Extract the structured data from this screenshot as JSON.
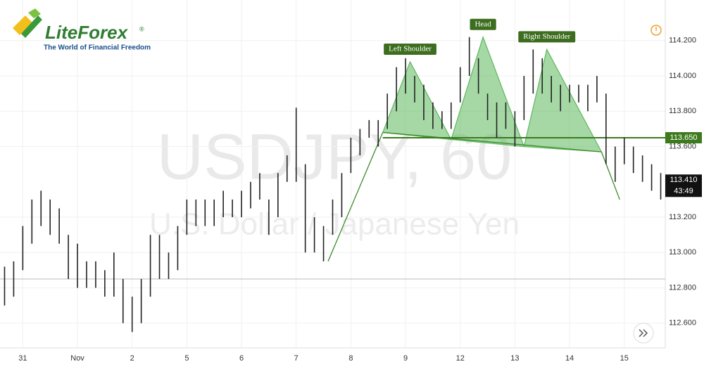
{
  "brand": {
    "name": "LiteForex",
    "mark": "®",
    "tagline": "The World of Financial Freedom"
  },
  "chart_data": {
    "type": "ohlc",
    "title": "USDJPY, 60",
    "subtitle": "U.S. Dollar / Japanese Yen",
    "categories": [
      null,
      null,
      "31",
      null,
      null,
      null,
      null,
      null,
      "Nov",
      null,
      null,
      null,
      null,
      null,
      "2",
      null,
      null,
      null,
      null,
      null,
      "5",
      null,
      null,
      null,
      null,
      null,
      "6",
      null,
      null,
      null,
      null,
      null,
      "7",
      null,
      null,
      null,
      null,
      null,
      "8",
      null,
      null,
      null,
      null,
      null,
      "9",
      null,
      null,
      null,
      null,
      null,
      "12",
      null,
      null,
      null,
      null,
      null,
      "13",
      null,
      null,
      null,
      null,
      null,
      "14",
      null,
      null,
      null,
      null,
      null,
      "15",
      null,
      null,
      null,
      null
    ],
    "high": [
      112.92,
      112.95,
      113.15,
      113.3,
      113.35,
      113.3,
      113.25,
      113.1,
      113.05,
      112.95,
      112.95,
      112.9,
      113.0,
      112.85,
      112.75,
      112.85,
      113.1,
      113.1,
      113.0,
      113.15,
      113.3,
      113.3,
      113.3,
      113.3,
      113.35,
      113.3,
      113.35,
      113.4,
      113.45,
      113.3,
      113.45,
      113.55,
      113.82,
      113.5,
      113.2,
      113.15,
      113.3,
      113.45,
      113.65,
      113.7,
      113.75,
      113.75,
      113.9,
      114.05,
      114.1,
      114.0,
      113.95,
      113.85,
      113.8,
      113.85,
      114.05,
      114.22,
      114.1,
      113.9,
      113.85,
      113.85,
      113.8,
      114.0,
      114.15,
      114.1,
      114.0,
      113.95,
      113.95,
      113.95,
      113.95,
      114.0,
      113.9,
      113.6,
      113.65,
      113.6,
      113.55,
      113.5,
      113.45
    ],
    "low": [
      112.7,
      112.75,
      112.9,
      113.05,
      113.15,
      113.1,
      113.05,
      112.85,
      112.8,
      112.8,
      112.8,
      112.75,
      112.75,
      112.6,
      112.55,
      112.6,
      112.75,
      112.85,
      112.85,
      112.9,
      113.1,
      113.15,
      113.15,
      113.15,
      113.2,
      113.2,
      113.2,
      113.25,
      113.3,
      113.1,
      113.2,
      113.4,
      113.4,
      113.0,
      113.0,
      112.95,
      113.1,
      113.2,
      113.45,
      113.55,
      113.65,
      113.6,
      113.7,
      113.8,
      113.9,
      113.85,
      113.75,
      113.7,
      113.7,
      113.7,
      113.85,
      114.0,
      113.9,
      113.75,
      113.65,
      113.7,
      113.6,
      113.75,
      113.9,
      113.9,
      113.85,
      113.8,
      113.85,
      113.85,
      113.8,
      113.85,
      113.5,
      113.4,
      113.5,
      113.45,
      113.4,
      113.35,
      113.3
    ],
    "color": "#222222",
    "ylim": [
      112.46,
      114.43
    ],
    "yticks": [
      {
        "value": 112.6,
        "label": "112.600"
      },
      {
        "value": 112.8,
        "label": "112.800"
      },
      {
        "value": 113.0,
        "label": "113.000"
      },
      {
        "value": 113.2,
        "label": "113.200"
      },
      {
        "value": 113.6,
        "label": "113.600"
      },
      {
        "value": 113.8,
        "label": "113.800"
      },
      {
        "value": 114.0,
        "label": "114.000"
      },
      {
        "value": 114.2,
        "label": "114.200"
      }
    ],
    "grid": true,
    "reference_line": 112.85,
    "neckline": {
      "value": 113.65,
      "label": "113.650",
      "color": "#3d7a1e"
    },
    "last_price": {
      "value": 113.41,
      "label": "113.410",
      "countdown": "43:49"
    },
    "pattern_color": "#5cb85c",
    "pattern": [
      {
        "label": "Left Shoulder",
        "points": [
          [
            41.5,
            113.68
          ],
          [
            44.5,
            114.08
          ],
          [
            49,
            113.64
          ]
        ]
      },
      {
        "label": "Head",
        "points": [
          [
            49,
            113.64
          ],
          [
            52.5,
            114.22
          ],
          [
            57,
            113.6
          ]
        ]
      },
      {
        "label": "Right Shoulder",
        "points": [
          [
            57,
            113.6
          ],
          [
            59.5,
            114.15
          ],
          [
            65.5,
            113.57
          ]
        ]
      }
    ],
    "pattern_lines": [
      [
        [
          35.5,
          112.95
        ],
        [
          41.5,
          113.68
        ]
      ],
      [
        [
          41.5,
          113.68
        ],
        [
          65.5,
          113.57
        ]
      ],
      [
        [
          65.5,
          113.57
        ],
        [
          67.5,
          113.3
        ]
      ]
    ]
  }
}
